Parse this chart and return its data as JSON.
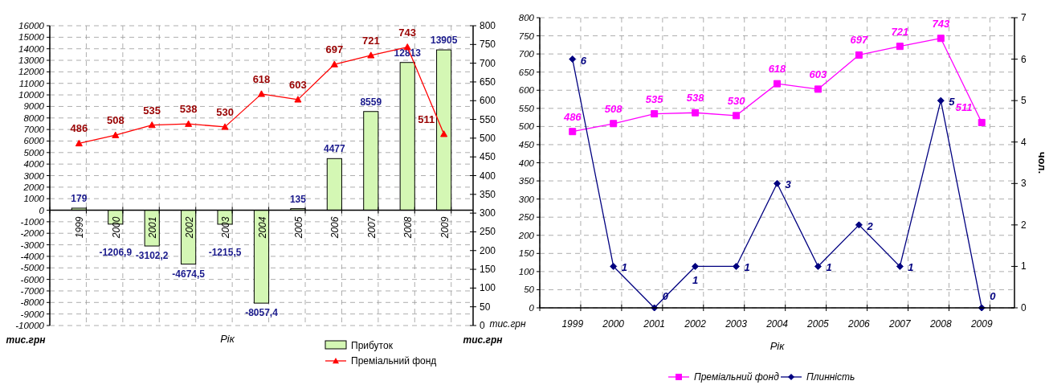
{
  "chart_data": [
    {
      "type": "bar",
      "categories": [
        "1999",
        "2000",
        "2001",
        "2002",
        "2003",
        "2004",
        "2005",
        "2006",
        "2007",
        "2008",
        "2009"
      ],
      "xlabel": "Рік",
      "ylabel": "тис.грн",
      "y2label": "тис.грн",
      "ylim": [
        -10000,
        16000
      ],
      "yticks": [
        -10000,
        -9000,
        -8000,
        -7000,
        -6000,
        -5000,
        -4000,
        -3000,
        -2000,
        -1000,
        0,
        1000,
        2000,
        3000,
        4000,
        5000,
        6000,
        7000,
        8000,
        9000,
        10000,
        11000,
        12000,
        13000,
        14000,
        15000,
        16000
      ],
      "y2lim": [
        0,
        800
      ],
      "y2ticks": [
        0,
        50,
        100,
        150,
        200,
        250,
        300,
        350,
        400,
        450,
        500,
        550,
        600,
        650,
        700,
        750,
        800
      ],
      "grid": true,
      "legend": "bottom",
      "series": [
        {
          "name": "Прибуток",
          "color": "#d4f7b4",
          "values": [
            179,
            -1206.9,
            -3102.2,
            -4674.5,
            -1215.5,
            -8057.4,
            135,
            4477,
            8559,
            12813,
            13905
          ],
          "value_labels": [
            "179",
            "-1206,9",
            "-3102,2",
            "-4674,5",
            "-1215,5",
            "-8057,4",
            "135",
            "4477",
            "8559",
            "12813",
            "13905"
          ]
        },
        {
          "name": "Преміальний фонд",
          "type": "line",
          "axis": "y2",
          "color": "#ff0000",
          "marker": "triangle",
          "values": [
            486,
            508,
            535,
            538,
            530,
            618,
            603,
            697,
            721,
            743,
            511
          ],
          "value_labels": [
            "486",
            "508",
            "535",
            "538",
            "530",
            "618",
            "603",
            "697",
            "721",
            "743",
            "511"
          ]
        }
      ]
    },
    {
      "type": "line",
      "categories": [
        "1999",
        "2000",
        "2001",
        "2002",
        "2003",
        "2004",
        "2005",
        "2006",
        "2007",
        "2008",
        "2009"
      ],
      "xlabel": "Рік",
      "ylabel": "тис.грн",
      "y2label": "чол.",
      "ylim": [
        0,
        800
      ],
      "yticks": [
        0,
        50,
        100,
        150,
        200,
        250,
        300,
        350,
        400,
        450,
        500,
        550,
        600,
        650,
        700,
        750,
        800
      ],
      "y2lim": [
        0,
        7
      ],
      "y2ticks": [
        0,
        1,
        2,
        3,
        4,
        5,
        6,
        7
      ],
      "grid": true,
      "legend": "bottom",
      "series": [
        {
          "name": "Преміальний фонд",
          "color": "#ff00ff",
          "marker": "square",
          "values": [
            486,
            508,
            535,
            538,
            530,
            618,
            603,
            697,
            721,
            743,
            511
          ],
          "value_labels": [
            "486",
            "508",
            "535",
            "538",
            "530",
            "618",
            "603",
            "697",
            "721",
            "743",
            "511"
          ]
        },
        {
          "name": "Плинність",
          "axis": "y2",
          "color": "#000080",
          "marker": "diamond",
          "values": [
            6,
            1,
            0,
            1,
            1,
            3,
            1,
            2,
            1,
            5,
            0
          ],
          "value_labels": [
            "6",
            "1",
            "0",
            "1",
            "1",
            "3",
            "1",
            "2",
            "1",
            "5",
            "0"
          ]
        }
      ]
    }
  ]
}
